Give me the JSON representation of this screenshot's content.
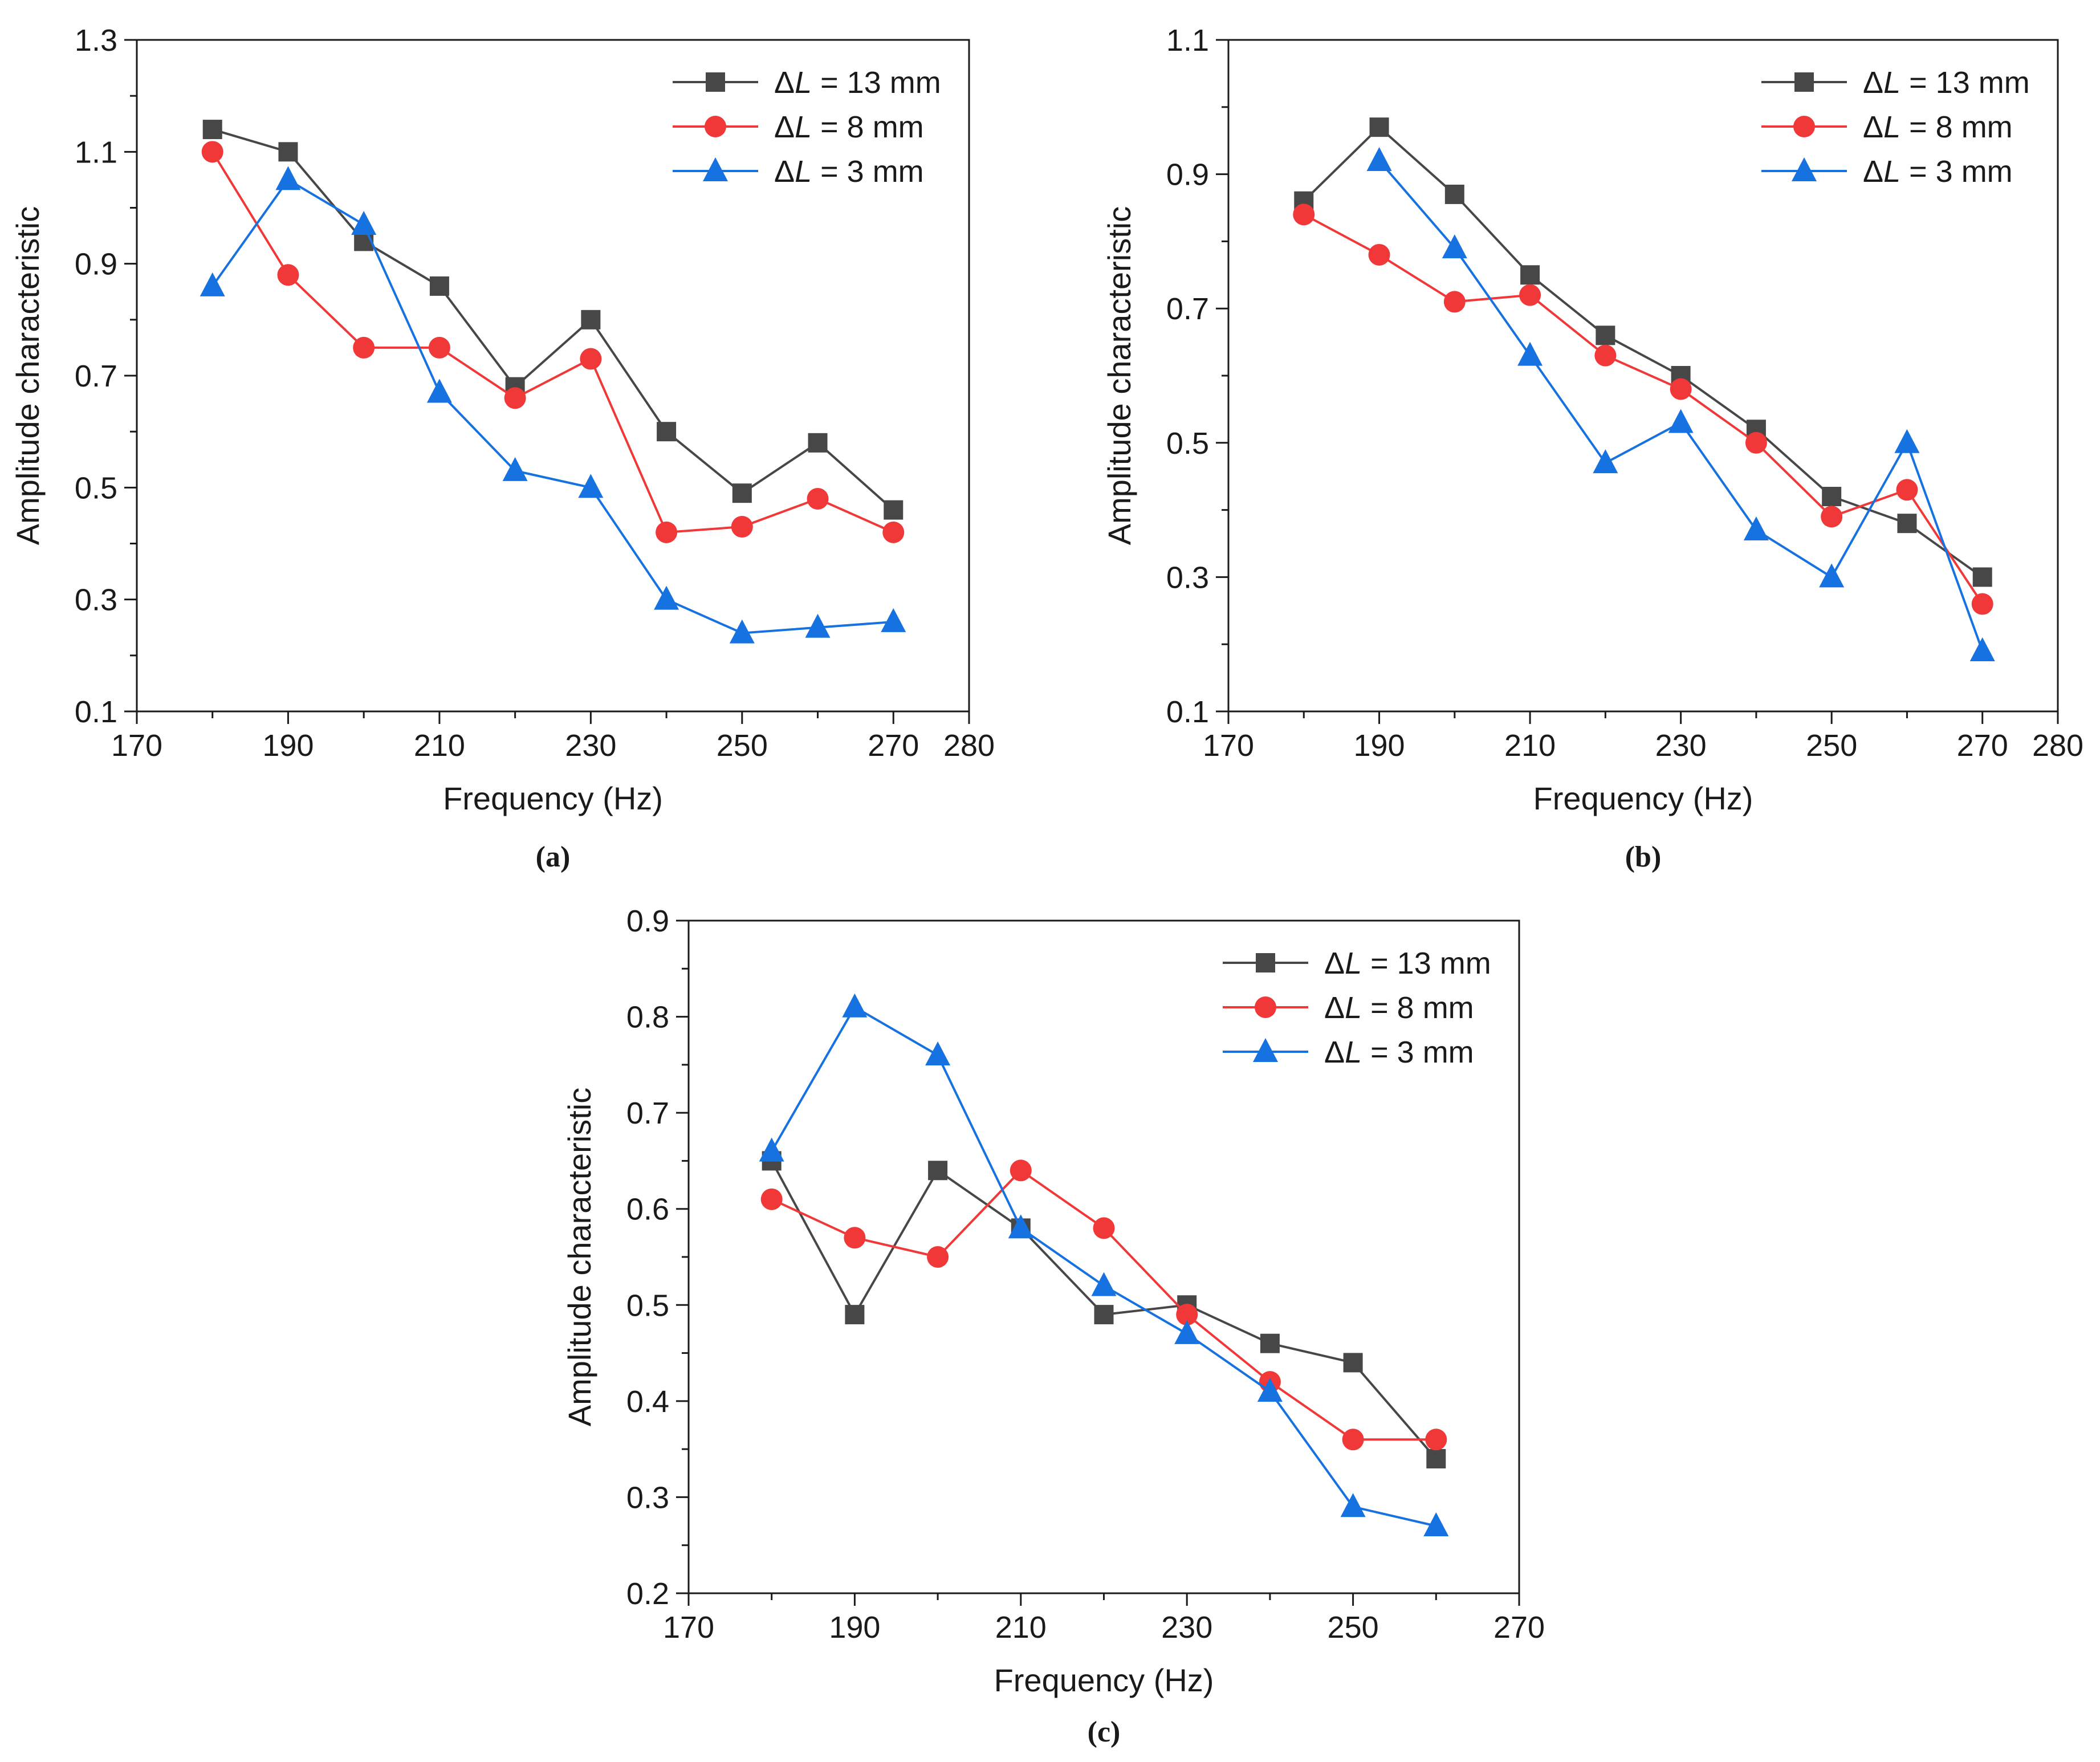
{
  "chart_data": [
    {
      "id": "a",
      "type": "line",
      "panel_label": "(a)",
      "xlabel": "Frequency (Hz)",
      "ylabel": "Amplitude characteristic",
      "xlim": [
        170,
        280
      ],
      "ylim": [
        0.1,
        1.3
      ],
      "xticks": [
        170,
        190,
        210,
        230,
        250,
        270,
        280
      ],
      "yticks": [
        0.1,
        0.3,
        0.5,
        0.7,
        0.9,
        1.1,
        1.3
      ],
      "xtick_labels": [
        "170",
        "190",
        "210",
        "230",
        "250",
        "270",
        "280"
      ],
      "ytick_labels": [
        "0.1",
        "0.3",
        "0.5",
        "0.7",
        "0.9",
        "1.1",
        "1.3"
      ],
      "legend_position": "top-right",
      "x": [
        180,
        190,
        200,
        210,
        220,
        230,
        240,
        250,
        260,
        270
      ],
      "series": [
        {
          "name": "ΔL = 13 mm",
          "legend_prefix": "Δ",
          "legend_var": "L",
          "legend_value": " = 13 mm",
          "color": "#474747",
          "marker": "square",
          "values": [
            1.14,
            1.1,
            0.94,
            0.86,
            0.68,
            0.8,
            0.6,
            0.49,
            0.58,
            0.46
          ]
        },
        {
          "name": "ΔL = 8 mm",
          "legend_prefix": "Δ",
          "legend_var": "L",
          "legend_value": " = 8 mm",
          "color": "#f03838",
          "marker": "circle",
          "values": [
            1.1,
            0.88,
            0.75,
            0.75,
            0.66,
            0.73,
            0.42,
            0.43,
            0.48,
            0.42
          ]
        },
        {
          "name": "ΔL = 3 mm",
          "legend_prefix": "Δ",
          "legend_var": "L",
          "legend_value": " = 3 mm",
          "color": "#1672e0",
          "marker": "triangle",
          "values": [
            0.86,
            1.05,
            0.97,
            0.67,
            0.53,
            0.5,
            0.3,
            0.24,
            0.25,
            0.26
          ]
        }
      ]
    },
    {
      "id": "b",
      "type": "line",
      "panel_label": "(b)",
      "xlabel": "Frequency (Hz)",
      "ylabel": "Amplitude characteristic",
      "xlim": [
        170,
        280
      ],
      "ylim": [
        0.1,
        1.1
      ],
      "xticks": [
        170,
        190,
        210,
        230,
        250,
        270,
        280
      ],
      "yticks": [
        0.1,
        0.3,
        0.5,
        0.7,
        0.9,
        1.1
      ],
      "xtick_labels": [
        "170",
        "190",
        "210",
        "230",
        "250",
        "270",
        "280"
      ],
      "ytick_labels": [
        "0.1",
        "0.3",
        "0.5",
        "0.7",
        "0.9",
        "1.1"
      ],
      "legend_position": "top-right",
      "x": [
        180,
        190,
        200,
        210,
        220,
        230,
        240,
        250,
        260,
        270
      ],
      "series": [
        {
          "name": "ΔL = 13 mm",
          "legend_prefix": "Δ",
          "legend_var": "L",
          "legend_value": " = 13 mm",
          "color": "#474747",
          "marker": "square",
          "values": [
            0.86,
            0.97,
            0.87,
            0.75,
            0.66,
            0.6,
            0.52,
            0.42,
            0.38,
            0.3
          ]
        },
        {
          "name": "ΔL = 8 mm",
          "legend_prefix": "Δ",
          "legend_var": "L",
          "legend_value": " = 8 mm",
          "color": "#f03838",
          "marker": "circle",
          "values": [
            0.84,
            0.78,
            0.71,
            0.72,
            0.63,
            0.58,
            0.5,
            0.39,
            0.43,
            0.26
          ]
        },
        {
          "name": "ΔL = 3 mm",
          "legend_prefix": "Δ",
          "legend_var": "L",
          "legend_value": " = 3 mm",
          "color": "#1672e0",
          "marker": "triangle",
          "values": [
            null,
            0.92,
            0.79,
            0.63,
            0.47,
            0.53,
            0.37,
            0.3,
            0.5,
            0.19
          ]
        }
      ]
    },
    {
      "id": "c",
      "type": "line",
      "panel_label": "(c)",
      "xlabel": "Frequency (Hz)",
      "ylabel": "Amplitude characteristic",
      "xlim": [
        170,
        270
      ],
      "ylim": [
        0.2,
        0.9
      ],
      "xticks": [
        170,
        190,
        210,
        230,
        250,
        270
      ],
      "yticks": [
        0.2,
        0.3,
        0.4,
        0.5,
        0.6,
        0.7,
        0.8,
        0.9
      ],
      "xtick_labels": [
        "170",
        "190",
        "210",
        "230",
        "250",
        "270"
      ],
      "ytick_labels": [
        "0.2",
        "0.3",
        "0.4",
        "0.5",
        "0.6",
        "0.7",
        "0.8",
        "0.9"
      ],
      "legend_position": "top-right",
      "x": [
        180,
        190,
        200,
        210,
        220,
        230,
        240,
        250,
        260
      ],
      "series": [
        {
          "name": "ΔL = 13 mm",
          "legend_prefix": "Δ",
          "legend_var": "L",
          "legend_value": " = 13 mm",
          "color": "#474747",
          "marker": "square",
          "values": [
            0.65,
            0.49,
            0.64,
            0.58,
            0.49,
            0.5,
            0.46,
            0.44,
            0.34
          ]
        },
        {
          "name": "ΔL = 8 mm",
          "legend_prefix": "Δ",
          "legend_var": "L",
          "legend_value": " = 8 mm",
          "color": "#f03838",
          "marker": "circle",
          "values": [
            0.61,
            0.57,
            0.55,
            0.64,
            0.58,
            0.49,
            0.42,
            0.36,
            0.36
          ]
        },
        {
          "name": "ΔL = 3 mm",
          "legend_prefix": "Δ",
          "legend_var": "L",
          "legend_value": " = 3 mm",
          "color": "#1672e0",
          "marker": "triangle",
          "values": [
            0.66,
            0.81,
            0.76,
            0.58,
            0.52,
            0.47,
            0.41,
            0.29,
            0.27
          ]
        }
      ]
    }
  ]
}
